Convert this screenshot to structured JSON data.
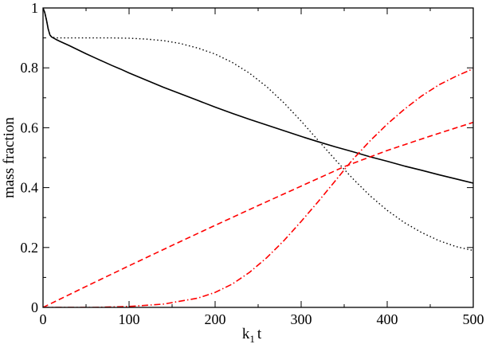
{
  "chart_data": {
    "type": "line",
    "title": "",
    "xlabel": {
      "main": "k",
      "subscript": "1",
      "suffix": "t"
    },
    "ylabel": "mass fraction",
    "xlim": [
      0,
      500
    ],
    "ylim": [
      0,
      1
    ],
    "x_ticks": [
      0,
      100,
      200,
      300,
      400,
      500
    ],
    "y_ticks": [
      0,
      0.2,
      0.4,
      0.6,
      0.8,
      1
    ],
    "x_tick_labels": [
      "0",
      "100",
      "200",
      "300",
      "400",
      "500"
    ],
    "y_tick_labels": [
      "0",
      "0.2",
      "0.4",
      "0.6",
      "0.8",
      "1"
    ],
    "grid": false,
    "legend": "none",
    "series": [
      {
        "color": "#000000",
        "dash": "solid",
        "x": [
          0,
          2,
          4,
          6,
          8,
          10,
          15,
          20,
          30,
          40,
          50,
          60,
          70,
          80,
          90,
          100,
          120,
          140,
          160,
          180,
          200,
          220,
          240,
          260,
          280,
          300,
          320,
          340,
          360,
          380,
          400,
          420,
          440,
          460,
          480,
          500
        ],
        "values": [
          1.0,
          0.985,
          0.96,
          0.93,
          0.91,
          0.903,
          0.895,
          0.888,
          0.875,
          0.861,
          0.847,
          0.834,
          0.821,
          0.808,
          0.796,
          0.783,
          0.759,
          0.735,
          0.713,
          0.691,
          0.669,
          0.648,
          0.628,
          0.609,
          0.59,
          0.571,
          0.553,
          0.536,
          0.52,
          0.503,
          0.488,
          0.472,
          0.458,
          0.443,
          0.429,
          0.415
        ]
      },
      {
        "color": "#000000",
        "dash": "dotted",
        "x": [
          0,
          2,
          4,
          6,
          8,
          10,
          15,
          20,
          40,
          60,
          80,
          100,
          120,
          140,
          160,
          180,
          200,
          220,
          240,
          260,
          280,
          300,
          320,
          340,
          360,
          380,
          400,
          420,
          440,
          460,
          480,
          500
        ],
        "values": [
          1.0,
          0.985,
          0.96,
          0.93,
          0.91,
          0.903,
          0.9,
          0.9,
          0.9,
          0.9,
          0.9,
          0.899,
          0.896,
          0.891,
          0.881,
          0.866,
          0.846,
          0.818,
          0.782,
          0.737,
          0.683,
          0.622,
          0.557,
          0.492,
          0.43,
          0.373,
          0.324,
          0.283,
          0.25,
          0.223,
          0.203,
          0.19
        ]
      },
      {
        "color": "#ff0000",
        "dash": "dashed",
        "x": [
          0,
          50,
          100,
          150,
          200,
          250,
          300,
          350,
          400,
          450,
          500
        ],
        "values": [
          0.0,
          0.07,
          0.139,
          0.207,
          0.274,
          0.34,
          0.405,
          0.47,
          0.524,
          0.572,
          0.618
        ]
      },
      {
        "color": "#ff0000",
        "dash": "dashdot",
        "x": [
          0,
          60,
          100,
          140,
          180,
          200,
          220,
          240,
          260,
          280,
          300,
          320,
          340,
          360,
          380,
          400,
          420,
          440,
          460,
          480,
          500
        ],
        "values": [
          0.0,
          0.0,
          0.003,
          0.011,
          0.031,
          0.05,
          0.078,
          0.117,
          0.166,
          0.223,
          0.287,
          0.354,
          0.424,
          0.494,
          0.556,
          0.612,
          0.662,
          0.706,
          0.743,
          0.772,
          0.797
        ]
      }
    ]
  }
}
